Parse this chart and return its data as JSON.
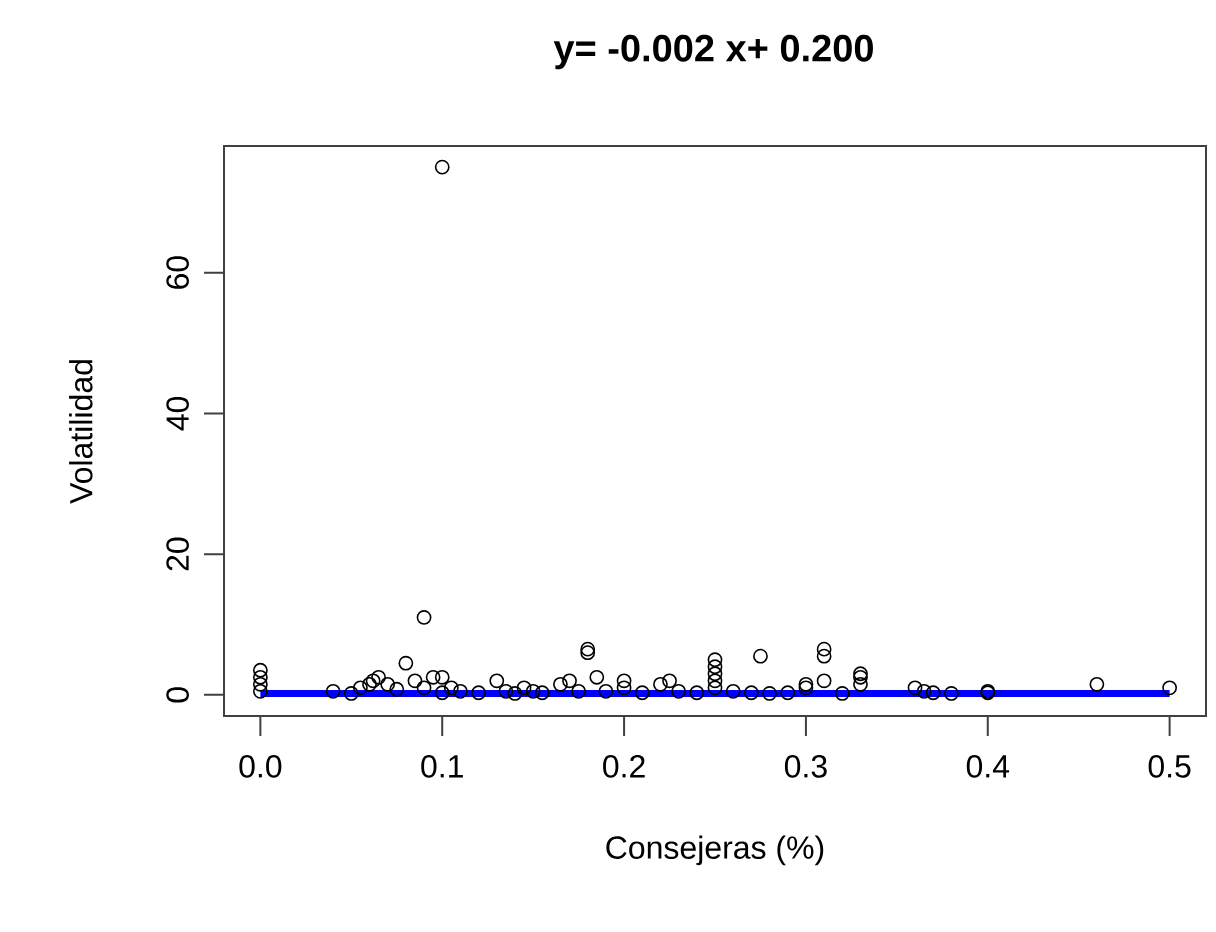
{
  "chart_data": {
    "type": "scatter",
    "title": "**y= -0.002 x+ 0.200**",
    "xlabel": "Consejeras (%)",
    "ylabel": "Volatilidad",
    "xlim": [
      -0.02,
      0.52
    ],
    "ylim": [
      -3,
      78
    ],
    "xticks": [
      {
        "value": 0,
        "label": "0.0"
      },
      {
        "value": 0.1,
        "label": "0.1"
      },
      {
        "value": 0.2,
        "label": "0.2"
      },
      {
        "value": 0.3,
        "label": "0.3"
      },
      {
        "value": 0.4,
        "label": "0.4"
      },
      {
        "value": 0.5,
        "label": "0.5"
      }
    ],
    "yticks": [
      0,
      20,
      40,
      60
    ],
    "series": [
      {
        "color": "#000000",
        "marker": "circle",
        "x": [
          0,
          0,
          0,
          0,
          0.04,
          0.05,
          0.055,
          0.06,
          0.062,
          0.065,
          0.07,
          0.075,
          0.08,
          0.085,
          0.09,
          0.09,
          0.095,
          0.1,
          0.1,
          0.1,
          0.105,
          0.11,
          0.12,
          0.13,
          0.135,
          0.14,
          0.145,
          0.15,
          0.155,
          0.165,
          0.17,
          0.175,
          0.18,
          0.18,
          0.185,
          0.19,
          0.2,
          0.2,
          0.21,
          0.22,
          0.225,
          0.23,
          0.24,
          0.25,
          0.25,
          0.25,
          0.25,
          0.25,
          0.26,
          0.27,
          0.275,
          0.28,
          0.29,
          0.3,
          0.3,
          0.31,
          0.31,
          0.31,
          0.32,
          0.33,
          0.33,
          0.33,
          0.36,
          0.365,
          0.37,
          0.38,
          0.4,
          0.4,
          0.46,
          0.5
        ],
        "values": [
          0.5,
          1.5,
          2.5,
          3.5,
          0.5,
          0.2,
          1,
          1.5,
          2,
          2.5,
          1.5,
          0.8,
          4.5,
          2,
          11,
          1,
          2.5,
          75,
          0.3,
          2.5,
          1,
          0.5,
          0.3,
          2,
          0.5,
          0.2,
          1,
          0.5,
          0.3,
          1.5,
          2,
          0.5,
          6,
          6.5,
          2.5,
          0.5,
          1,
          2,
          0.3,
          1.5,
          2,
          0.5,
          0.3,
          1,
          2,
          3,
          4,
          5,
          0.5,
          0.3,
          5.5,
          0.2,
          0.3,
          1,
          1.5,
          5.5,
          6.5,
          2,
          0.2,
          2.5,
          3,
          1.5,
          1,
          0.5,
          0.3,
          0.2,
          0.5,
          0.3,
          1.5,
          1
        ]
      },
      {
        "type": "line",
        "color": "#0000ff",
        "x": [
          0,
          0.5
        ],
        "values": [
          0.2,
          0.2
        ]
      }
    ]
  }
}
